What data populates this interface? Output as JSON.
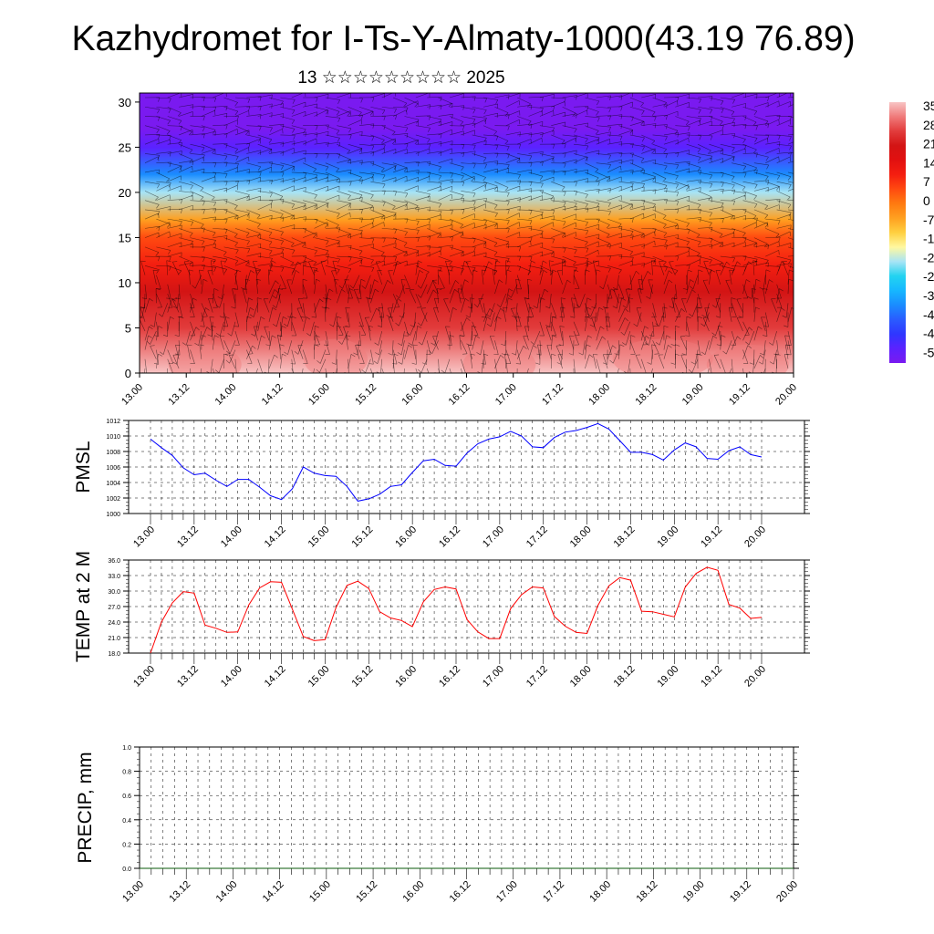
{
  "page": {
    "title": "Kazhydromet for I-Ts-Y-Almaty-1000(43.19 76.89)",
    "subtitle": "13 ☆☆☆☆☆☆☆☆☆ 2025"
  },
  "colors": {
    "pmsl_line": "#0000ff",
    "temp_line": "#ff0000",
    "precip_line": "#0a5a0a",
    "colorbar": [
      "#7a1af0",
      "#5b22ff",
      "#2f36ff",
      "#2a5cff",
      "#1a8cff",
      "#16b7ff",
      "#22d3f0",
      "#a8e4f5",
      "#fff8a0",
      "#ffd040",
      "#ffa020",
      "#ff7a10",
      "#ff4a10",
      "#f41e10",
      "#e21010",
      "#d31414",
      "#e23c3c",
      "#f07a7a",
      "#f8c4c4"
    ]
  },
  "chart_data": [
    {
      "type": "heatmap",
      "x_tick_labels": [
        "13.00",
        "13.12",
        "14.00",
        "14.12",
        "15.00",
        "15.12",
        "16.00",
        "16.12",
        "17.00",
        "17.12",
        "18.00",
        "18.12",
        "19.00",
        "19.12",
        "20.00"
      ],
      "y_ticks": [
        0,
        5,
        10,
        15,
        20,
        25,
        30
      ],
      "ylim": [
        0,
        31
      ],
      "xlim": [
        0,
        14
      ],
      "colorbar_labels": [
        "35",
        "28",
        "21",
        "14",
        "7",
        "0",
        "-7",
        "-1",
        "-2",
        "-2",
        "-3",
        "-4",
        "-4",
        "-5"
      ],
      "field_profile": [
        {
          "level": 0,
          "value": 33
        },
        {
          "level": 5,
          "value": 27
        },
        {
          "level": 9,
          "value": 20
        },
        {
          "level": 12,
          "value": 11
        },
        {
          "level": 15,
          "value": 2
        },
        {
          "level": 17,
          "value": -7
        },
        {
          "level": 20,
          "value": -22
        },
        {
          "level": 22,
          "value": -35
        },
        {
          "level": 25,
          "value": -50
        },
        {
          "level": 27,
          "value": -55
        },
        {
          "level": 31,
          "value": -57
        }
      ],
      "overlay": "wind barbs"
    },
    {
      "type": "line",
      "ylabel": "PMSL",
      "ylim": [
        1000,
        1012
      ],
      "y_ticks": [
        1000,
        1002,
        1004,
        1006,
        1008,
        1010,
        1012
      ],
      "x_tick_labels": [
        "13.00",
        "13.12",
        "14.00",
        "14.12",
        "15.00",
        "15.12",
        "16.00",
        "16.12",
        "17.00",
        "17.12",
        "18.00",
        "18.12",
        "19.00",
        "19.12",
        "20.00"
      ],
      "x": [
        0,
        0.5,
        1,
        1.5,
        2,
        2.5,
        3,
        3.5,
        4,
        4.5,
        5,
        5.5,
        6,
        6.5,
        7,
        7.5,
        8,
        8.5,
        9,
        9.5,
        10,
        10.5,
        11,
        11.5,
        12,
        12.5,
        13,
        13.5,
        14,
        14.5,
        15,
        15.5,
        16,
        16.5,
        17,
        17.5,
        18,
        18.5,
        19,
        19.5,
        20,
        20.5,
        21,
        21.5,
        22,
        22.5,
        23,
        23.5,
        24,
        24.5,
        25,
        25.5,
        26,
        26.5,
        27,
        27.5,
        28
      ],
      "values": [
        1009.6,
        1008.5,
        1007.5,
        1005.9,
        1005,
        1005.2,
        1004.3,
        1003.5,
        1004.4,
        1004.4,
        1003.4,
        1002.3,
        1001.8,
        1003.2,
        1006,
        1005.2,
        1004.9,
        1004.8,
        1003.5,
        1001.6,
        1001.9,
        1002.5,
        1003.5,
        1003.7,
        1005.3,
        1006.8,
        1007,
        1006.2,
        1006.1,
        1007.8,
        1009,
        1009.6,
        1009.9,
        1010.6,
        1010,
        1008.6,
        1008.5,
        1009.8,
        1010.5,
        1010.7,
        1011.1,
        1011.6,
        1010.9,
        1009.4,
        1007.9,
        1007.9,
        1007.6,
        1006.9,
        1008.2,
        1009.1,
        1008.6,
        1007.1,
        1007,
        1008.1,
        1008.6,
        1007.6,
        1007.3
      ]
    },
    {
      "type": "line",
      "ylabel": "TEMP at 2 M",
      "ylim": [
        18,
        36
      ],
      "y_ticks": [
        18,
        21,
        24,
        27,
        30,
        33,
        36
      ],
      "y_tick_labels": [
        "18.0",
        "21.0",
        "24.0",
        "27.0",
        "30.0",
        "33.0",
        "36.0"
      ],
      "x_tick_labels": [
        "13.00",
        "13.12",
        "14.00",
        "14.12",
        "15.00",
        "15.12",
        "16.00",
        "16.12",
        "17.00",
        "17.12",
        "18.00",
        "18.12",
        "19.00",
        "19.12",
        "20.00"
      ],
      "x": [
        0,
        0.5,
        1,
        1.5,
        2,
        2.5,
        3,
        3.5,
        4,
        4.5,
        5,
        5.5,
        6,
        6.5,
        7,
        7.5,
        8,
        8.5,
        9,
        9.5,
        10,
        10.5,
        11,
        11.5,
        12,
        12.5,
        13,
        13.5,
        14,
        14.5,
        15,
        15.5,
        16,
        16.5,
        17,
        17.5,
        18,
        18.5,
        19,
        19.5,
        20,
        20.5,
        21,
        21.5,
        22,
        22.5,
        23,
        23.5,
        24,
        24.5,
        25,
        25.5,
        26,
        26.5,
        27,
        27.5,
        28
      ],
      "values": [
        18,
        24,
        27.7,
        29.9,
        29.6,
        23.4,
        22.8,
        22,
        22.1,
        27.3,
        30.6,
        31.8,
        31.7,
        26.5,
        21.2,
        20.4,
        20.6,
        26.8,
        31.1,
        31.9,
        30.5,
        26,
        24.8,
        24.3,
        23.1,
        27.9,
        30.3,
        30.8,
        30.4,
        24.5,
        22.1,
        20.8,
        20.8,
        26.6,
        29.3,
        30.8,
        30.6,
        25.1,
        23.2,
        22,
        21.8,
        27.2,
        31,
        32.6,
        32.1,
        26.1,
        26,
        25.5,
        25,
        30.8,
        33.4,
        34.6,
        34,
        27.4,
        26.7,
        24.7,
        24.9
      ]
    },
    {
      "type": "line",
      "ylabel": "PRECIP, mm",
      "ylim": [
        0,
        1
      ],
      "y_ticks": [
        0,
        0.2,
        0.4,
        0.6,
        0.8,
        1
      ],
      "y_tick_labels": [
        "0.0",
        "0.2",
        "0.4",
        "0.6",
        "0.8",
        "1.0"
      ],
      "x_tick_labels": [
        "13.00",
        "13.12",
        "14.00",
        "14.12",
        "15.00",
        "15.12",
        "16.00",
        "16.12",
        "17.00",
        "17.12",
        "18.00",
        "18.12",
        "19.00",
        "19.12",
        "20.00"
      ],
      "xlim": [
        0,
        14
      ],
      "x": [
        0,
        14
      ],
      "values": [
        0,
        0
      ]
    }
  ]
}
